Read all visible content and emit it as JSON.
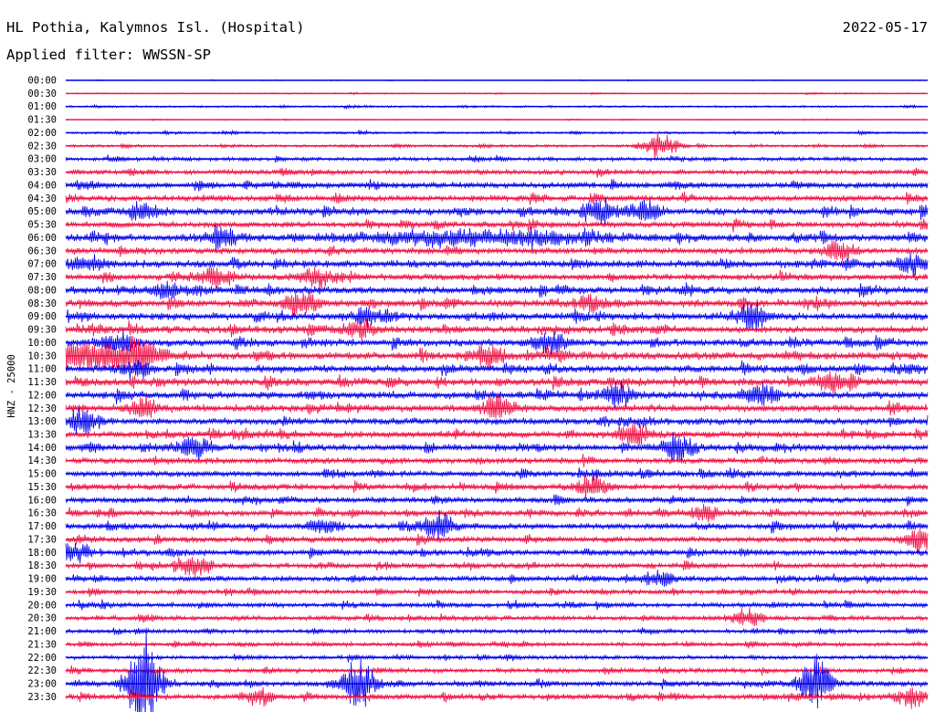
{
  "header": {
    "station": "HL Pothia, Kalymnos Isl. (Hospital)",
    "date": "2022-05-17",
    "filter_prefix": "Applied filter:",
    "filter_name": "WWSSN-SP"
  },
  "chart_data": {
    "type": "line",
    "title": "HL Pothia, Kalymnos Isl. (Hospital)",
    "subtitle": "Applied filter: WWSSN-SP",
    "date": "2022-05-17",
    "ylabel": "HNZ - 25000",
    "xlabel": "",
    "series_colors": [
      "#0000ee",
      "#ee1144"
    ],
    "grid": false,
    "legend": "none",
    "trace_start_labels": [
      "00:00",
      "00:30",
      "01:00",
      "01:30",
      "02:00",
      "02:30",
      "03:00",
      "03:30",
      "04:00",
      "04:30",
      "05:00",
      "05:30",
      "06:00",
      "06:30",
      "07:00",
      "07:30",
      "08:00",
      "08:30",
      "09:00",
      "09:30",
      "10:00",
      "10:30",
      "11:00",
      "11:30",
      "12:00",
      "12:30",
      "13:00",
      "13:30",
      "14:00",
      "14:30",
      "15:00",
      "15:30",
      "16:00",
      "16:30",
      "17:00",
      "17:30",
      "18:00",
      "18:30",
      "19:00",
      "19:30",
      "20:00",
      "20:30",
      "21:00",
      "21:30",
      "22:00",
      "22:30",
      "23:00",
      "23:30"
    ],
    "trace_amplitude_level": [
      0.05,
      0.09,
      0.15,
      0.07,
      0.16,
      0.2,
      0.28,
      0.36,
      0.45,
      0.45,
      0.55,
      0.45,
      0.55,
      0.5,
      0.55,
      0.5,
      0.55,
      0.55,
      0.55,
      0.55,
      0.55,
      0.6,
      0.55,
      0.55,
      0.55,
      0.55,
      0.5,
      0.5,
      0.5,
      0.45,
      0.45,
      0.45,
      0.45,
      0.45,
      0.45,
      0.45,
      0.45,
      0.4,
      0.4,
      0.35,
      0.35,
      0.35,
      0.3,
      0.3,
      0.3,
      0.35,
      0.4,
      0.4
    ],
    "events": [
      {
        "trace": "02:30",
        "t": 0.69,
        "amp": 2.5
      },
      {
        "trace": "05:00",
        "t": 0.09,
        "amp": 1.6
      },
      {
        "trace": "05:00",
        "t": 0.62,
        "amp": 2.0
      },
      {
        "trace": "05:00",
        "t": 0.67,
        "amp": 2.2
      },
      {
        "trace": "06:00",
        "t": 0.18,
        "amp": 1.6
      },
      {
        "trace": "06:00",
        "t": 0.47,
        "amp": 1.4,
        "width": 0.14
      },
      {
        "trace": "06:30",
        "t": 0.9,
        "amp": 1.8
      },
      {
        "trace": "07:00",
        "t": 0.02,
        "amp": 1.5
      },
      {
        "trace": "07:00",
        "t": 0.98,
        "amp": 2.0
      },
      {
        "trace": "07:30",
        "t": 0.17,
        "amp": 1.5
      },
      {
        "trace": "07:30",
        "t": 0.29,
        "amp": 2.0
      },
      {
        "trace": "08:00",
        "t": 0.12,
        "amp": 1.8
      },
      {
        "trace": "08:30",
        "t": 0.27,
        "amp": 2.3
      },
      {
        "trace": "08:30",
        "t": 0.61,
        "amp": 1.4
      },
      {
        "trace": "09:00",
        "t": 0.35,
        "amp": 1.6
      },
      {
        "trace": "09:00",
        "t": 0.79,
        "amp": 2.0
      },
      {
        "trace": "09:30",
        "t": 0.34,
        "amp": 1.8
      },
      {
        "trace": "10:00",
        "t": 0.06,
        "amp": 2.0
      },
      {
        "trace": "10:00",
        "t": 0.56,
        "amp": 1.8
      },
      {
        "trace": "10:30",
        "t": 0.03,
        "amp": 3.0,
        "width": 0.05
      },
      {
        "trace": "10:30",
        "t": 0.09,
        "amp": 2.5
      },
      {
        "trace": "10:30",
        "t": 0.49,
        "amp": 2.0
      },
      {
        "trace": "11:00",
        "t": 0.08,
        "amp": 1.8
      },
      {
        "trace": "11:30",
        "t": 0.89,
        "amp": 1.8
      },
      {
        "trace": "12:00",
        "t": 0.64,
        "amp": 2.0
      },
      {
        "trace": "12:00",
        "t": 0.81,
        "amp": 2.0
      },
      {
        "trace": "12:30",
        "t": 0.09,
        "amp": 1.8
      },
      {
        "trace": "12:30",
        "t": 0.5,
        "amp": 2.0
      },
      {
        "trace": "13:00",
        "t": 0.02,
        "amp": 2.5
      },
      {
        "trace": "13:30",
        "t": 0.66,
        "amp": 2.5
      },
      {
        "trace": "14:00",
        "t": 0.15,
        "amp": 2.3
      },
      {
        "trace": "14:00",
        "t": 0.71,
        "amp": 2.5
      },
      {
        "trace": "15:30",
        "t": 0.61,
        "amp": 2.2
      },
      {
        "trace": "16:30",
        "t": 0.74,
        "amp": 1.5
      },
      {
        "trace": "17:00",
        "t": 0.3,
        "amp": 1.4
      },
      {
        "trace": "17:00",
        "t": 0.43,
        "amp": 2.5
      },
      {
        "trace": "17:30",
        "t": 0.99,
        "amp": 1.8
      },
      {
        "trace": "18:00",
        "t": 0.01,
        "amp": 2.0
      },
      {
        "trace": "18:30",
        "t": 0.15,
        "amp": 2.0
      },
      {
        "trace": "19:00",
        "t": 0.69,
        "amp": 1.5
      },
      {
        "trace": "20:30",
        "t": 0.79,
        "amp": 1.7
      },
      {
        "trace": "23:00",
        "t": 0.09,
        "amp": 10.0
      },
      {
        "trace": "23:00",
        "t": 0.34,
        "amp": 5.0
      },
      {
        "trace": "23:00",
        "t": 0.87,
        "amp": 5.0
      },
      {
        "trace": "23:30",
        "t": 0.22,
        "amp": 1.5
      },
      {
        "trace": "23:30",
        "t": 0.98,
        "amp": 2.0
      }
    ]
  }
}
